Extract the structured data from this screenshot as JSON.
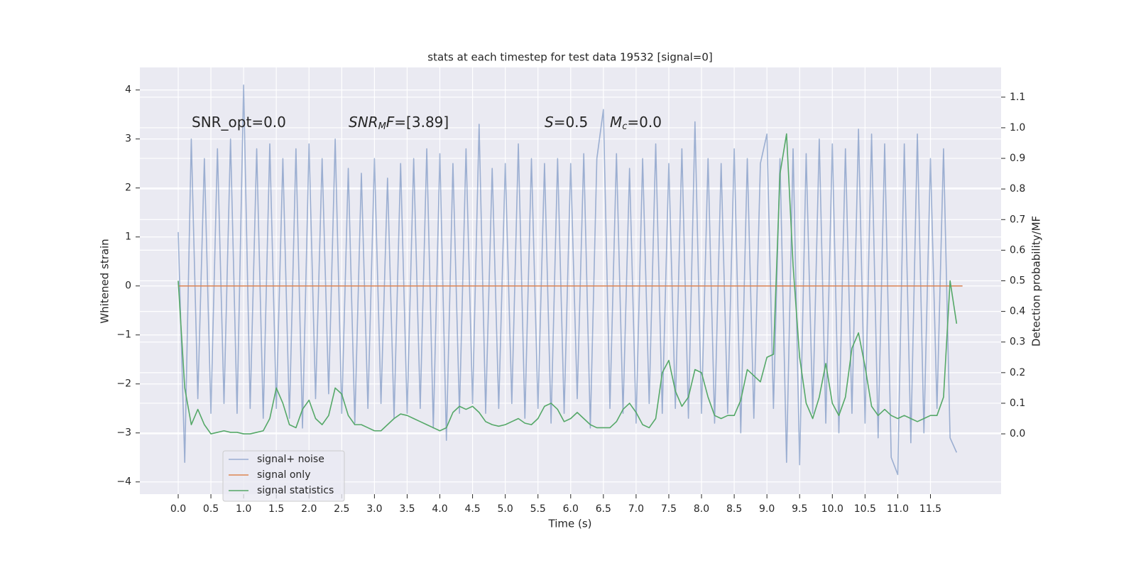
{
  "chart_data": {
    "type": "line",
    "title": "stats at each timestep for test data 19532 [signal=0]",
    "x_label": "Time (s)",
    "y_label": "Whitened strain",
    "y2_label": "Detection probability/MF",
    "annotations": [
      {
        "parts": [
          {
            "text": "SNR_opt=0.0",
            "style": "normal"
          }
        ]
      },
      {
        "parts": [
          {
            "text": "SNR",
            "style": "italic"
          },
          {
            "text": "M",
            "style": "sub"
          },
          {
            "text": "F",
            "style": "italic"
          },
          {
            "text": "=[3.89]",
            "style": "normal"
          }
        ]
      },
      {
        "parts": [
          {
            "text": "S",
            "style": "italic"
          },
          {
            "text": "=0.5",
            "style": "normal"
          }
        ]
      },
      {
        "parts": [
          {
            "text": "M",
            "style": "italic"
          },
          {
            "text": "c",
            "style": "sub"
          },
          {
            "text": "=0.0",
            "style": "normal"
          }
        ]
      }
    ],
    "x": [
      0.0,
      0.1,
      0.2,
      0.3,
      0.4,
      0.5,
      0.6,
      0.7,
      0.8,
      0.9,
      1.0,
      1.1,
      1.2,
      1.3,
      1.4,
      1.5,
      1.6,
      1.7,
      1.8,
      1.9,
      2.0,
      2.1,
      2.2,
      2.3,
      2.4,
      2.5,
      2.6,
      2.7,
      2.8,
      2.9,
      3.0,
      3.1,
      3.2,
      3.3,
      3.4,
      3.5,
      3.6,
      3.7,
      3.8,
      3.9,
      4.0,
      4.1,
      4.2,
      4.3,
      4.4,
      4.5,
      4.6,
      4.7,
      4.8,
      4.9,
      5.0,
      5.1,
      5.2,
      5.3,
      5.4,
      5.5,
      5.6,
      5.7,
      5.8,
      5.9,
      6.0,
      6.1,
      6.2,
      6.3,
      6.4,
      6.5,
      6.6,
      6.7,
      6.8,
      6.9,
      7.0,
      7.1,
      7.2,
      7.3,
      7.4,
      7.5,
      7.6,
      7.7,
      7.8,
      7.9,
      8.0,
      8.1,
      8.2,
      8.3,
      8.4,
      8.5,
      8.6,
      8.7,
      8.8,
      8.9,
      9.0,
      9.1,
      9.2,
      9.3,
      9.4,
      9.5,
      9.6,
      9.7,
      9.8,
      9.9,
      10.0,
      10.1,
      10.2,
      10.3,
      10.4,
      10.5,
      10.6,
      10.7,
      10.8,
      10.9,
      11.0,
      11.1,
      11.2,
      11.3,
      11.4,
      11.5,
      11.6,
      11.7,
      11.8,
      11.9
    ],
    "series": [
      {
        "name": "signal+ noise",
        "color": "#4c72b0",
        "opacity": 0.5,
        "values": [
          1.1,
          -3.6,
          3.0,
          -2.3,
          2.6,
          -2.6,
          2.8,
          -2.4,
          3.0,
          -2.6,
          4.1,
          -2.5,
          2.8,
          -2.7,
          2.9,
          -2.5,
          2.6,
          -2.7,
          2.8,
          -2.9,
          2.9,
          -2.3,
          2.6,
          -2.2,
          3.0,
          -2.6,
          2.4,
          -2.8,
          2.3,
          -2.5,
          2.6,
          -2.4,
          2.2,
          -2.7,
          2.5,
          -2.6,
          2.6,
          -2.5,
          2.8,
          -2.9,
          2.7,
          -3.15,
          2.5,
          -2.6,
          2.8,
          -2.4,
          3.3,
          -2.6,
          2.4,
          -2.5,
          2.5,
          -2.4,
          2.9,
          -2.7,
          2.6,
          -2.5,
          2.5,
          -2.8,
          2.6,
          -2.6,
          2.5,
          -2.3,
          2.7,
          -2.9,
          2.6,
          3.6,
          -2.5,
          2.7,
          -2.6,
          2.4,
          -2.8,
          2.6,
          -2.4,
          2.9,
          -2.6,
          2.5,
          -2.5,
          2.8,
          -2.7,
          3.35,
          -2.6,
          2.6,
          -2.8,
          2.5,
          -2.6,
          2.8,
          -3.0,
          2.6,
          -2.7,
          2.5,
          3.1,
          -2.5,
          2.6,
          -3.6,
          2.8,
          -3.65,
          2.7,
          -2.6,
          3.0,
          -2.8,
          2.9,
          -3.0,
          2.8,
          -2.6,
          3.2,
          -2.8,
          3.1,
          -3.1,
          2.9,
          -3.5,
          -3.85,
          2.9,
          -3.2,
          3.1,
          -3.0,
          2.6,
          -2.5,
          2.8,
          -3.1,
          -3.4
        ]
      },
      {
        "name": "signal only",
        "color": "#dd8452",
        "x": [
          0.0,
          11.99
        ],
        "values": [
          0,
          0
        ]
      },
      {
        "name": "signal statistics",
        "color": "#55a868",
        "axis": "y2",
        "values": [
          0.5,
          0.15,
          0.03,
          0.08,
          0.03,
          0.0,
          0.005,
          0.01,
          0.005,
          0.005,
          0.0,
          0.0,
          0.005,
          0.01,
          0.05,
          0.15,
          0.1,
          0.03,
          0.02,
          0.08,
          0.11,
          0.05,
          0.03,
          0.06,
          0.15,
          0.13,
          0.06,
          0.03,
          0.03,
          0.02,
          0.01,
          0.01,
          0.03,
          0.05,
          0.065,
          0.06,
          0.05,
          0.04,
          0.03,
          0.02,
          0.01,
          0.02,
          0.07,
          0.09,
          0.08,
          0.09,
          0.07,
          0.04,
          0.03,
          0.025,
          0.03,
          0.04,
          0.05,
          0.035,
          0.03,
          0.05,
          0.09,
          0.1,
          0.08,
          0.04,
          0.05,
          0.07,
          0.05,
          0.03,
          0.02,
          0.02,
          0.02,
          0.04,
          0.08,
          0.1,
          0.07,
          0.03,
          0.02,
          0.05,
          0.2,
          0.24,
          0.14,
          0.09,
          0.12,
          0.21,
          0.2,
          0.12,
          0.06,
          0.05,
          0.06,
          0.06,
          0.11,
          0.21,
          0.19,
          0.17,
          0.25,
          0.26,
          0.85,
          0.98,
          0.55,
          0.25,
          0.1,
          0.05,
          0.12,
          0.23,
          0.1,
          0.06,
          0.12,
          0.28,
          0.33,
          0.22,
          0.09,
          0.06,
          0.08,
          0.06,
          0.05,
          0.06,
          0.05,
          0.04,
          0.05,
          0.06,
          0.06,
          0.12,
          0.5,
          0.36
        ]
      }
    ],
    "xlim": [
      -0.586,
      12.58
    ],
    "xticks": [
      {
        "value": 0,
        "label": "0.0"
      },
      0.5,
      {
        "value": 1,
        "label": "1.0"
      },
      1.5,
      {
        "value": 2,
        "label": "2.0"
      },
      2.5,
      {
        "value": 3,
        "label": "3.0"
      },
      3.5,
      {
        "value": 4,
        "label": "4.0"
      },
      4.5,
      {
        "value": 5,
        "label": "5.0"
      },
      5.5,
      {
        "value": 6,
        "label": "6.0"
      },
      6.5,
      {
        "value": 7,
        "label": "7.0"
      },
      7.5,
      {
        "value": 8,
        "label": "8.0"
      },
      8.5,
      {
        "value": 9,
        "label": "9.0"
      },
      9.5,
      {
        "value": 10,
        "label": "10.0"
      },
      10.5,
      {
        "value": 11,
        "label": "11.0"
      },
      11.5
    ],
    "ylim": [
      -4.25,
      4.46
    ],
    "yticks": [
      {
        "value": -4,
        "label": "−4"
      },
      {
        "value": -3,
        "label": "−3"
      },
      {
        "value": -2,
        "label": "−2"
      },
      {
        "value": -1,
        "label": "−1"
      },
      0,
      1,
      2,
      3,
      4
    ],
    "y2lim": [
      -0.197,
      1.197
    ],
    "y2ticks": [
      {
        "value": 0,
        "label": "0.0"
      },
      0.1,
      0.2,
      0.3,
      0.4,
      0.5,
      0.6,
      0.7,
      0.8,
      0.9,
      {
        "value": 1,
        "label": "1.0"
      },
      1.1
    ],
    "grid": true,
    "legend": "lower left"
  }
}
